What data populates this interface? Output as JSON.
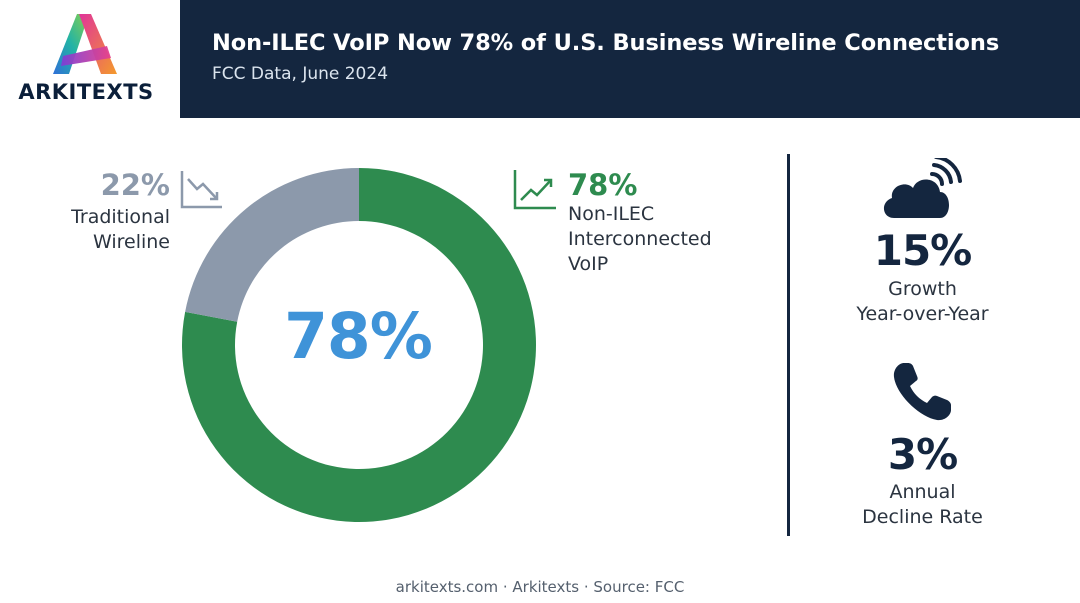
{
  "brand": {
    "name": "ARKITEXTS"
  },
  "header": {
    "title": "Non-ILEC VoIP Now 78% of U.S. Business Wireline Connections",
    "subtitle": "FCC Data, June 2024"
  },
  "chart_data": {
    "type": "pie",
    "title": "Non-ILEC VoIP Now 78% of U.S. Business Wireline Connections",
    "categories": [
      "Non-ILEC Interconnected VoIP",
      "Traditional Wireline"
    ],
    "values": [
      78,
      22
    ],
    "colors": [
      "#2e8b4f",
      "#8c99ab"
    ],
    "center_label": "78%",
    "labels": [
      {
        "pct": "78%",
        "name_lines": [
          "Non-ILEC",
          "Interconnected",
          "VoIP"
        ],
        "icon": "trend-up-icon"
      },
      {
        "pct": "22%",
        "name_lines": [
          "Traditional",
          "Wireline"
        ],
        "icon": "trend-down-icon"
      }
    ]
  },
  "stats": [
    {
      "value": "15%",
      "label_lines": [
        "Growth",
        "Year-over-Year"
      ],
      "icon": "cloud-signal-icon"
    },
    {
      "value": "3%",
      "label_lines": [
        "Annual",
        "Decline Rate"
      ],
      "icon": "phone-icon"
    }
  ],
  "footer": {
    "text": "arkitexts.com · Arkitexts · Source: FCC"
  },
  "colors": {
    "header_bg": "#14263f",
    "accent_blue": "#3f93d8",
    "green": "#2e8b4f",
    "gray": "#8c99ab"
  }
}
